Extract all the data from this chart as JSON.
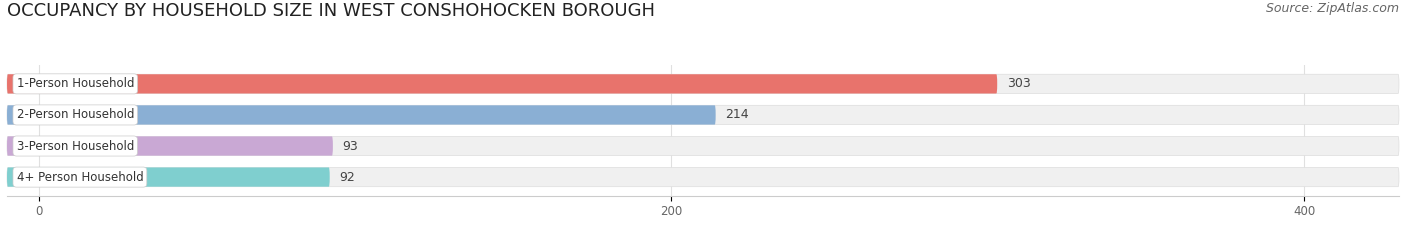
{
  "title": "OCCUPANCY BY HOUSEHOLD SIZE IN WEST CONSHOHOCKEN BOROUGH",
  "source": "Source: ZipAtlas.com",
  "categories": [
    "1-Person Household",
    "2-Person Household",
    "3-Person Household",
    "4+ Person Household"
  ],
  "values": [
    303,
    214,
    93,
    92
  ],
  "bar_colors": [
    "#e8736c",
    "#8aafd4",
    "#c9a8d4",
    "#7fcfcf"
  ],
  "background_color": "#ffffff",
  "bar_bg_color": "#f0f0f0",
  "xlim": [
    -10,
    430
  ],
  "xticks": [
    0,
    200,
    400
  ],
  "title_fontsize": 13,
  "source_fontsize": 9,
  "bar_label_fontsize": 9,
  "category_fontsize": 8.5,
  "bar_height": 0.62,
  "bar_gap": 0.38
}
